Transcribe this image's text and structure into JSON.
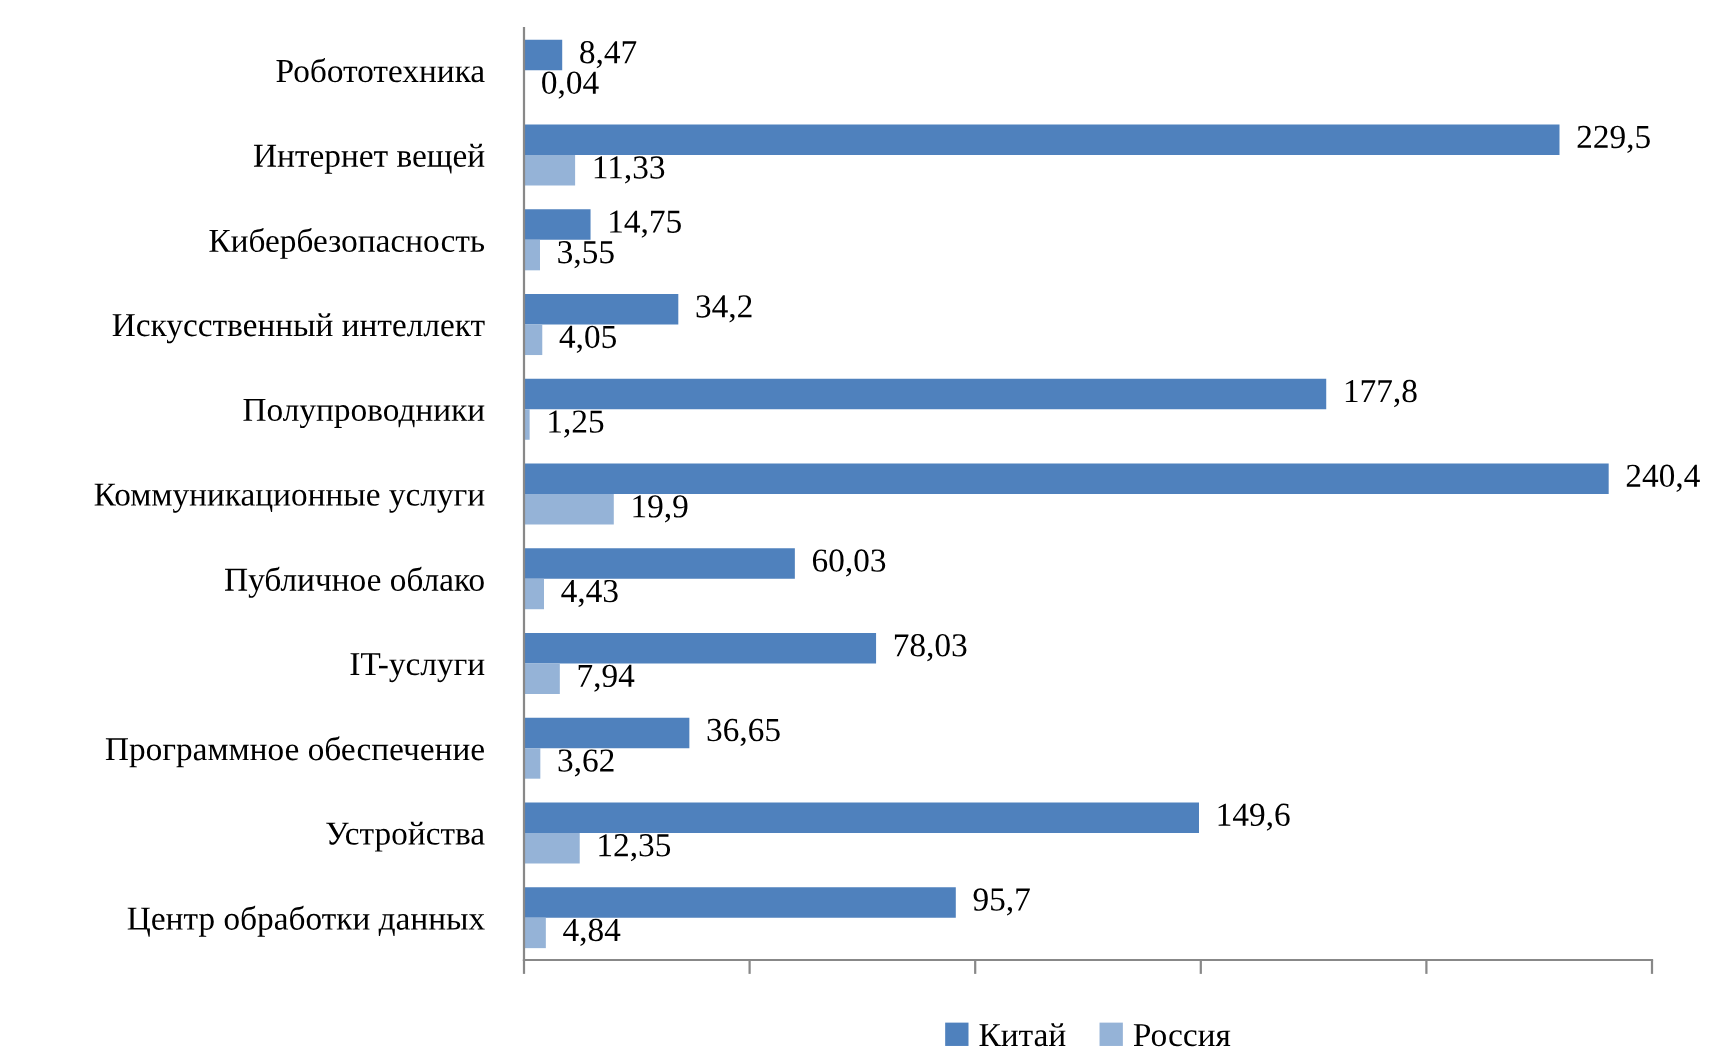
{
  "chart_data": {
    "type": "bar",
    "orientation": "horizontal",
    "categories": [
      "Робототехника",
      "Интернет вещей",
      "Кибербезопасность",
      "Искусственный интеллект",
      "Полупроводники",
      "Коммуникационные услуги",
      "Публичное облако",
      "IT-услуги",
      "Программное обеспечение",
      "Устройства",
      "Центр обработки данных"
    ],
    "series": [
      {
        "name": "Китай",
        "color": "#4f81bd",
        "values": [
          8.47,
          229.5,
          14.75,
          34.2,
          177.8,
          240.4,
          60.03,
          78.03,
          36.65,
          149.6,
          95.7
        ],
        "value_labels": [
          "8,47",
          "229,5",
          "14,75",
          "34,2",
          "177,8",
          "240,4",
          "60,03",
          "78,03",
          "36,65",
          "149,6",
          "95,7"
        ]
      },
      {
        "name": "Россия",
        "color": "#95b3d7",
        "values": [
          0.04,
          11.33,
          3.55,
          4.05,
          1.25,
          19.9,
          4.43,
          7.94,
          3.62,
          12.35,
          4.84
        ],
        "value_labels": [
          "0,04",
          "11,33",
          "3,55",
          "4,05",
          "1,25",
          "19,9",
          "4,43",
          "7,94",
          "3,62",
          "12,35",
          "4,84"
        ]
      }
    ],
    "xlim": [
      0,
      250
    ],
    "xticks": [
      {
        "value": 0,
        "label": null
      },
      {
        "value": 50,
        "label": null
      },
      {
        "value": 100,
        "label": null
      },
      {
        "value": 150,
        "label": null
      },
      {
        "value": 200,
        "label": null
      },
      {
        "value": 250,
        "label": null
      }
    ],
    "tick_labels": "y",
    "grid": false,
    "legend": "bottom"
  }
}
